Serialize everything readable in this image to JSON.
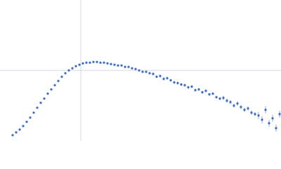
{
  "chart_data": {
    "type": "scatter",
    "color": "#3a6bc4",
    "xlim": [
      0,
      400
    ],
    "ylim": [
      0,
      200
    ],
    "xgrid": [
      115
    ],
    "ygrid": [
      100
    ],
    "x": [
      18,
      23,
      28,
      33,
      38,
      43,
      48,
      53,
      58,
      63,
      68,
      73,
      78,
      83,
      88,
      93,
      98,
      103,
      108,
      113,
      118,
      123,
      128,
      133,
      138,
      143,
      148,
      153,
      158,
      163,
      168,
      173,
      178,
      183,
      188,
      193,
      198,
      203,
      208,
      213,
      218,
      223,
      228,
      233,
      238,
      243,
      248,
      253,
      258,
      263,
      268,
      273,
      278,
      283,
      288,
      293,
      298,
      303,
      308,
      313,
      318,
      323,
      328,
      333,
      338,
      343,
      348,
      353,
      358,
      363,
      368,
      373,
      378,
      383,
      388,
      393,
      398
    ],
    "values": [
      8,
      12,
      16,
      21,
      27,
      33,
      40,
      47,
      54,
      60,
      67,
      73,
      79,
      85,
      91,
      96,
      100,
      103,
      106,
      108,
      110,
      111,
      111,
      112,
      112,
      111,
      111,
      110,
      109,
      108,
      107,
      107,
      105,
      105,
      103,
      102,
      100,
      98,
      98,
      96,
      95,
      91,
      92,
      88,
      89,
      86,
      83,
      82,
      80,
      79,
      76,
      77,
      72,
      73,
      69,
      71,
      66,
      67,
      62,
      60,
      61,
      57,
      55,
      50,
      53,
      48,
      44,
      46,
      40,
      38,
      36,
      30,
      44,
      25,
      32,
      18,
      38
    ],
    "errors": [
      1,
      1,
      1,
      1,
      1,
      1,
      1,
      1,
      1,
      1,
      1,
      1,
      1,
      1,
      1,
      1,
      1,
      1,
      1,
      1,
      1,
      1,
      1,
      1,
      1,
      1,
      1,
      1,
      1,
      1,
      1,
      1,
      1,
      1,
      1,
      1,
      1,
      1,
      1,
      1,
      2,
      2,
      2,
      2,
      2,
      2,
      2,
      2,
      2,
      2,
      2,
      2,
      2,
      2,
      2,
      2,
      2,
      2,
      2,
      2,
      3,
      3,
      3,
      3,
      3,
      3,
      3,
      3,
      3,
      3,
      5,
      5,
      5,
      5,
      5,
      5,
      5
    ]
  }
}
